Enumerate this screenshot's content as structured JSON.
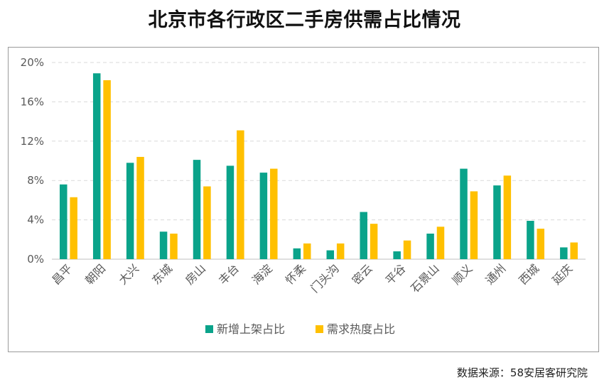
{
  "chart_data": {
    "type": "bar",
    "title": "北京市各行政区二手房供需占比情况",
    "categories": [
      "昌平",
      "朝阳",
      "大兴",
      "东城",
      "房山",
      "丰台",
      "海淀",
      "怀柔",
      "门头沟",
      "密云",
      "平谷",
      "石景山",
      "顺义",
      "通州",
      "西城",
      "延庆"
    ],
    "series": [
      {
        "name": "新增上架占比",
        "color": "#0aa38a",
        "values": [
          7.6,
          18.9,
          9.8,
          2.8,
          10.1,
          9.5,
          8.8,
          1.1,
          0.9,
          4.8,
          0.8,
          2.6,
          9.2,
          7.5,
          3.9,
          1.2
        ]
      },
      {
        "name": "需求热度占比",
        "color": "#ffc000",
        "values": [
          6.3,
          18.2,
          10.4,
          2.6,
          7.4,
          13.1,
          9.2,
          1.6,
          1.6,
          3.6,
          1.9,
          3.3,
          6.9,
          8.5,
          3.1,
          1.7
        ]
      }
    ],
    "ylim": [
      0,
      20
    ],
    "yticks": [
      0,
      4,
      8,
      12,
      16,
      20
    ],
    "ytick_labels": [
      "0%",
      "4%",
      "8%",
      "12%",
      "16%",
      "20%"
    ],
    "xlabel": "",
    "ylabel": "",
    "grid": true,
    "legend_position": "bottom"
  },
  "source_text": "数据来源：58安居客研究院"
}
